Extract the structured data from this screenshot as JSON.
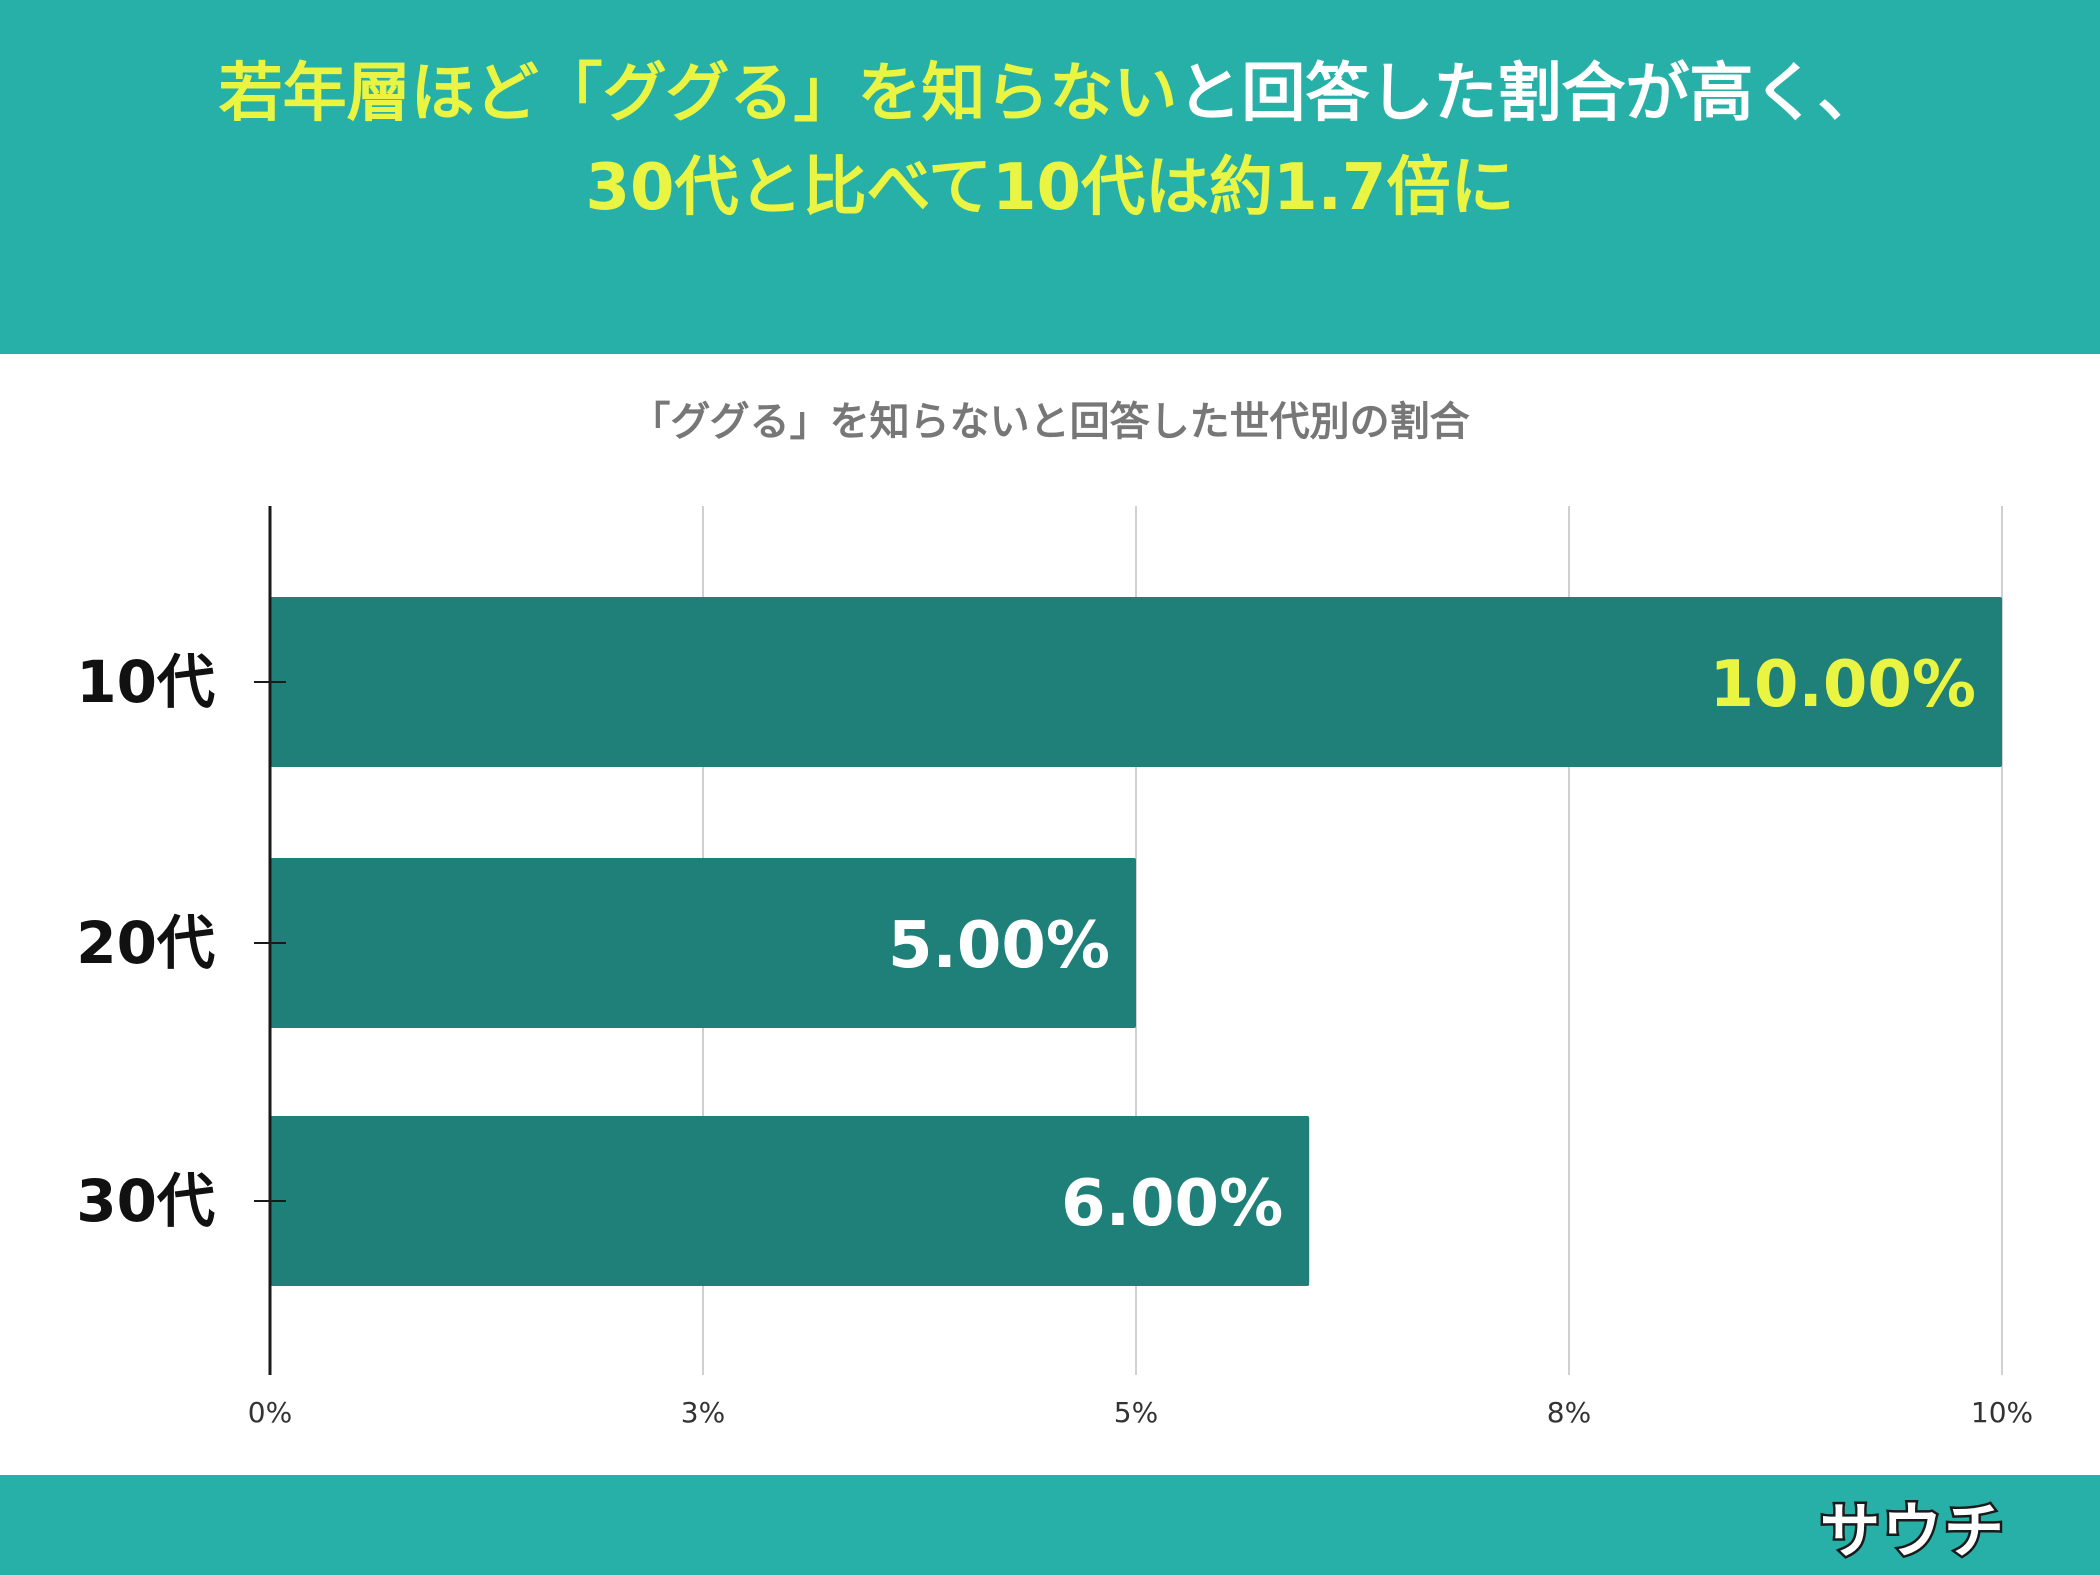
{
  "headline": {
    "line1_yellow": "若年層ほど「ググる」を知らない",
    "line1_white": "と回答した割合が高く、",
    "line2": "30代と比べて10代は約1.7倍に"
  },
  "brand": {
    "logo_text": "サウチ"
  },
  "colors": {
    "header_bg": "#27b0a7",
    "bar": "#1f8079",
    "highlight_label": "#e9f542",
    "label": "#ffffff",
    "grid": "#d0d0d0",
    "axis": "#1a1a1a"
  },
  "chart_data": {
    "type": "bar",
    "orientation": "horizontal",
    "title": "「ググる」を知らないと回答した世代別の割合",
    "categories": [
      "10代",
      "20代",
      "30代"
    ],
    "values": [
      10.0,
      5.0,
      6.0
    ],
    "data_labels": [
      "10.00%",
      "5.00%",
      "6.00%"
    ],
    "highlight_index": 0,
    "xlim": [
      0,
      10
    ],
    "x_ticks": [
      0,
      2.5,
      5,
      7.5,
      10
    ],
    "x_tick_labels": [
      "0%",
      "3%",
      "5%",
      "8%",
      "10%"
    ],
    "grid": true,
    "legend": "none"
  }
}
